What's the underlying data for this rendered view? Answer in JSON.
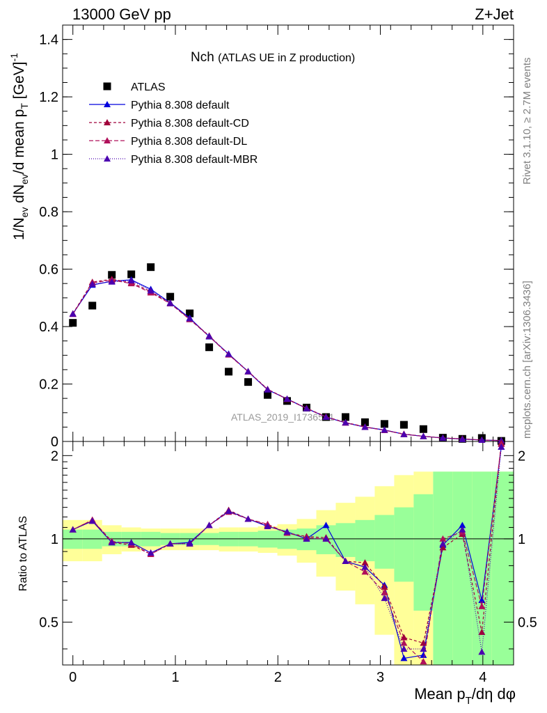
{
  "header": {
    "left": "13000 GeV pp",
    "right": "Z+Jet"
  },
  "side_labels": {
    "rivet": "Rivet 3.1.10, ≥ 2.7M events",
    "mcplots": "mcplots.cern.ch [arXiv:1306.3436]"
  },
  "watermark": "ATLAS_2019_I1736531",
  "chart_data": [
    {
      "type": "scatter",
      "title_main": "Nch",
      "title_sub": "(ATLAS UE in Z production)",
      "ylabel": "1/N_ev dN_ev/d mean p_T [GeV]^-1",
      "ylabel_parts": {
        "a": "1/N",
        "b": "ev",
        "c": " dN",
        "d": "ev",
        "e": "/d mean p",
        "f": "T",
        "g": " [GeV]",
        "h": "-1"
      },
      "xlim": [
        -0.1,
        4.3
      ],
      "ylim": [
        0,
        1.45
      ],
      "yticks": [
        0,
        0.2,
        0.4,
        0.6,
        0.8,
        1,
        1.2,
        1.4
      ],
      "ytick_labels": [
        "0",
        "0.2",
        "0.4",
        "0.6",
        "0.8",
        "1",
        "1.2",
        "1.4"
      ],
      "x": [
        0.0,
        0.19,
        0.38,
        0.57,
        0.76,
        0.95,
        1.14,
        1.33,
        1.52,
        1.71,
        1.9,
        2.09,
        2.28,
        2.47,
        2.66,
        2.85,
        3.04,
        3.23,
        3.42,
        3.61,
        3.8,
        3.99,
        4.18
      ],
      "series": [
        {
          "name": "ATLAS",
          "color": "#000000",
          "marker": "square",
          "values": [
            0.413,
            0.473,
            0.58,
            0.582,
            0.607,
            0.504,
            0.446,
            0.328,
            0.243,
            0.207,
            0.162,
            0.141,
            0.118,
            0.085,
            0.085,
            0.067,
            0.061,
            0.058,
            0.043,
            0.013,
            0.009,
            0.012,
            0.002
          ]
        },
        {
          "name": "Pythia 8.308 default",
          "color": "#0000dd",
          "marker": "triangle",
          "dash": "",
          "values": [
            0.445,
            0.545,
            0.558,
            0.563,
            0.53,
            0.483,
            0.43,
            0.365,
            0.305,
            0.243,
            0.18,
            0.148,
            0.115,
            0.085,
            0.065,
            0.05,
            0.04,
            0.025,
            0.018,
            0.012,
            0.008,
            0.005,
            0.003
          ]
        },
        {
          "name": "Pythia 8.308 default-CD",
          "color": "#a0003a",
          "marker": "triangle",
          "dash": "4,3",
          "values": [
            0.445,
            0.555,
            0.565,
            0.553,
            0.522,
            0.482,
            0.426,
            0.368,
            0.303,
            0.244,
            0.182,
            0.148,
            0.116,
            0.086,
            0.066,
            0.051,
            0.039,
            0.026,
            0.018,
            0.012,
            0.009,
            0.005,
            0.003
          ]
        },
        {
          "name": "Pythia 8.308 default-DL",
          "color": "#b0105a",
          "marker": "triangle",
          "dash": "6,3",
          "values": [
            0.443,
            0.552,
            0.562,
            0.55,
            0.518,
            0.48,
            0.425,
            0.366,
            0.302,
            0.243,
            0.181,
            0.147,
            0.115,
            0.085,
            0.065,
            0.05,
            0.039,
            0.025,
            0.018,
            0.012,
            0.009,
            0.005,
            0.003
          ]
        },
        {
          "name": "Pythia 8.308 default-MBR",
          "color": "#4b00b0",
          "marker": "triangle",
          "dash": "1,2",
          "values": [
            0.444,
            0.548,
            0.556,
            0.56,
            0.525,
            0.481,
            0.428,
            0.367,
            0.304,
            0.244,
            0.181,
            0.148,
            0.115,
            0.085,
            0.066,
            0.05,
            0.04,
            0.025,
            0.018,
            0.012,
            0.008,
            0.005,
            0.003
          ]
        }
      ]
    },
    {
      "type": "scatter",
      "ylabel": "Ratio to ATLAS",
      "xlabel": "Mean p_T/dη dφ",
      "xlabel_parts": {
        "a": "Mean p",
        "b": "T",
        "c": "/dη dφ"
      },
      "ylim": [
        0.35,
        2.25
      ],
      "yticks": [
        0.5,
        1,
        2
      ],
      "ytick_labels": [
        "0.5",
        "1",
        "2"
      ],
      "xticks": [
        0,
        1,
        2,
        3,
        4
      ],
      "xtick_labels": [
        "0",
        "1",
        "2",
        "3",
        "4"
      ],
      "x": [
        0.0,
        0.19,
        0.38,
        0.57,
        0.76,
        0.95,
        1.14,
        1.33,
        1.52,
        1.71,
        1.9,
        2.09,
        2.28,
        2.47,
        2.66,
        2.85,
        3.04,
        3.23,
        3.42,
        3.61,
        3.8,
        3.99,
        4.18
      ],
      "bin_edges": [
        -0.1,
        0.095,
        0.285,
        0.475,
        0.665,
        0.855,
        1.045,
        1.235,
        1.425,
        1.615,
        1.805,
        1.995,
        2.185,
        2.375,
        2.565,
        2.755,
        2.945,
        3.135,
        3.325,
        3.515,
        3.705,
        3.895,
        4.085,
        4.3
      ],
      "band_inner": [
        0.08,
        0.08,
        0.06,
        0.06,
        0.06,
        0.05,
        0.05,
        0.05,
        0.06,
        0.06,
        0.07,
        0.08,
        0.09,
        0.12,
        0.14,
        0.17,
        0.22,
        0.3,
        0.45,
        0.75,
        0.75,
        0.75,
        0.75
      ],
      "band_outer": [
        0.17,
        0.17,
        0.12,
        0.1,
        0.09,
        0.09,
        0.09,
        0.09,
        0.1,
        0.1,
        0.11,
        0.13,
        0.18,
        0.27,
        0.35,
        0.42,
        0.55,
        0.7,
        0.75,
        0.75,
        0.75,
        0.75,
        0.75
      ],
      "series": [
        {
          "name": "Pythia 8.308 default",
          "color": "#0000dd",
          "dash": "",
          "values": [
            1.08,
            1.16,
            0.97,
            0.97,
            0.89,
            0.96,
            0.97,
            1.12,
            1.26,
            1.18,
            1.11,
            1.06,
            1.0,
            1.12,
            0.83,
            0.79,
            0.68,
            0.37,
            0.38,
            0.95,
            1.12,
            0.6,
            2.15
          ]
        },
        {
          "name": "Pythia 8.308 default-CD",
          "color": "#a0003a",
          "dash": "4,3",
          "values": [
            1.08,
            1.17,
            0.97,
            0.95,
            0.88,
            0.96,
            0.96,
            1.12,
            1.27,
            1.18,
            1.12,
            1.05,
            1.02,
            1.01,
            0.83,
            0.82,
            0.67,
            0.44,
            0.42,
            0.93,
            1.04,
            0.46,
            2.22
          ]
        },
        {
          "name": "Pythia 8.308 default-DL",
          "color": "#b0105a",
          "dash": "6,3",
          "values": [
            1.08,
            1.17,
            0.98,
            0.96,
            0.88,
            0.96,
            0.96,
            1.12,
            1.25,
            1.18,
            1.13,
            1.05,
            1.01,
            1.0,
            0.83,
            0.76,
            0.64,
            0.42,
            0.36,
            1.0,
            1.06,
            0.57,
            2.2
          ]
        },
        {
          "name": "Pythia 8.308 default-MBR",
          "color": "#4b00b0",
          "dash": "1,2",
          "values": [
            1.08,
            1.16,
            0.97,
            0.97,
            0.89,
            0.96,
            0.96,
            1.12,
            1.26,
            1.18,
            1.11,
            1.06,
            1.0,
            1.0,
            0.83,
            0.79,
            0.61,
            0.4,
            0.4,
            0.96,
            1.08,
            0.39,
            2.15
          ]
        }
      ]
    }
  ]
}
